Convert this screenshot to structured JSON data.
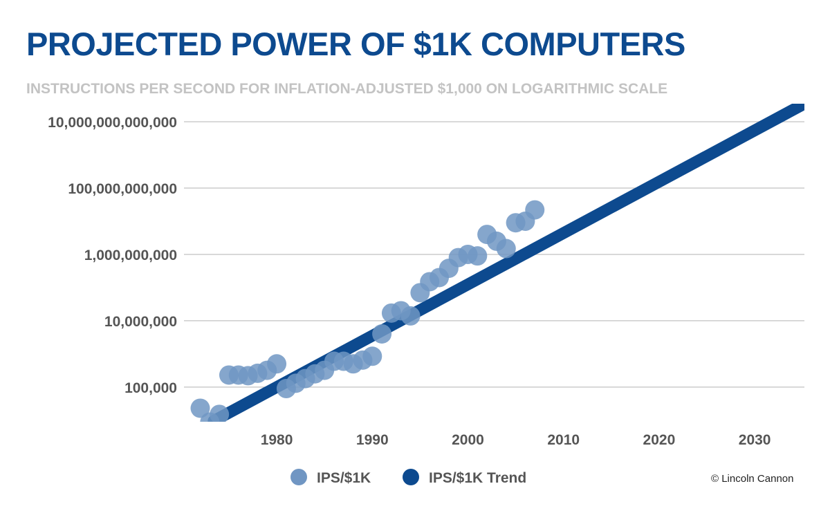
{
  "chart_data": {
    "type": "scatter",
    "title": "PROJECTED POWER OF $1K COMPUTERS",
    "subtitle": "INSTRUCTIONS PER SECOND FOR INFLATION-ADJUSTED $1,000 ON LOGARITHMIC SCALE",
    "xlabel": "",
    "ylabel": "",
    "y_scale": "log",
    "grid": "horizontal",
    "legend_position": "bottom",
    "xlim": [
      1970.3,
      2035.2
    ],
    "ylim": [
      9000,
      35000000000000
    ],
    "x_ticks": [
      1980,
      1990,
      2000,
      2010,
      2020,
      2030
    ],
    "x_tick_labels": [
      "1980",
      "1990",
      "2000",
      "2010",
      "2020",
      "2030"
    ],
    "y_ticks": [
      100000,
      10000000,
      1000000000,
      100000000000,
      10000000000000
    ],
    "y_tick_labels": [
      "100,000",
      "10,000,000",
      "1,000,000,000",
      "100,000,000,000",
      "10,000,000,000,000"
    ],
    "colors": {
      "points": "#7096c3",
      "trend": "#0d4a8f",
      "grid": "#cccccc"
    },
    "series": [
      {
        "name": "IPS/$1K",
        "kind": "scatter",
        "points": [
          [
            1972,
            23000
          ],
          [
            1973,
            8800
          ],
          [
            1974,
            15000
          ],
          [
            1975,
            230000
          ],
          [
            1976,
            230000
          ],
          [
            1977,
            220000
          ],
          [
            1978,
            260000
          ],
          [
            1979,
            320000
          ],
          [
            1980,
            500000
          ],
          [
            1981,
            90000
          ],
          [
            1982,
            130000
          ],
          [
            1983,
            180000
          ],
          [
            1984,
            250000
          ],
          [
            1985,
            320000
          ],
          [
            1986,
            600000
          ],
          [
            1987,
            600000
          ],
          [
            1988,
            500000
          ],
          [
            1989,
            650000
          ],
          [
            1990,
            850000
          ],
          [
            1991,
            4000000
          ],
          [
            1992,
            17000000
          ],
          [
            1993,
            20000000
          ],
          [
            1994,
            14000000
          ],
          [
            1995,
            70000000
          ],
          [
            1996,
            150000000
          ],
          [
            1997,
            200000000
          ],
          [
            1998,
            380000000
          ],
          [
            1999,
            800000000
          ],
          [
            2000,
            1000000000
          ],
          [
            2001,
            900000000
          ],
          [
            2002,
            4000000000
          ],
          [
            2003,
            2500000000
          ],
          [
            2004,
            1500000000
          ],
          [
            2005,
            9000000000
          ],
          [
            2006,
            10000000000
          ],
          [
            2007,
            22000000000
          ]
        ]
      },
      {
        "name": "IPS/$1K Trend",
        "kind": "line",
        "points": [
          [
            1973.4,
            9500
          ],
          [
            2035.2,
            35000000000000
          ]
        ]
      }
    ]
  },
  "credit": "© Lincoln Cannon"
}
